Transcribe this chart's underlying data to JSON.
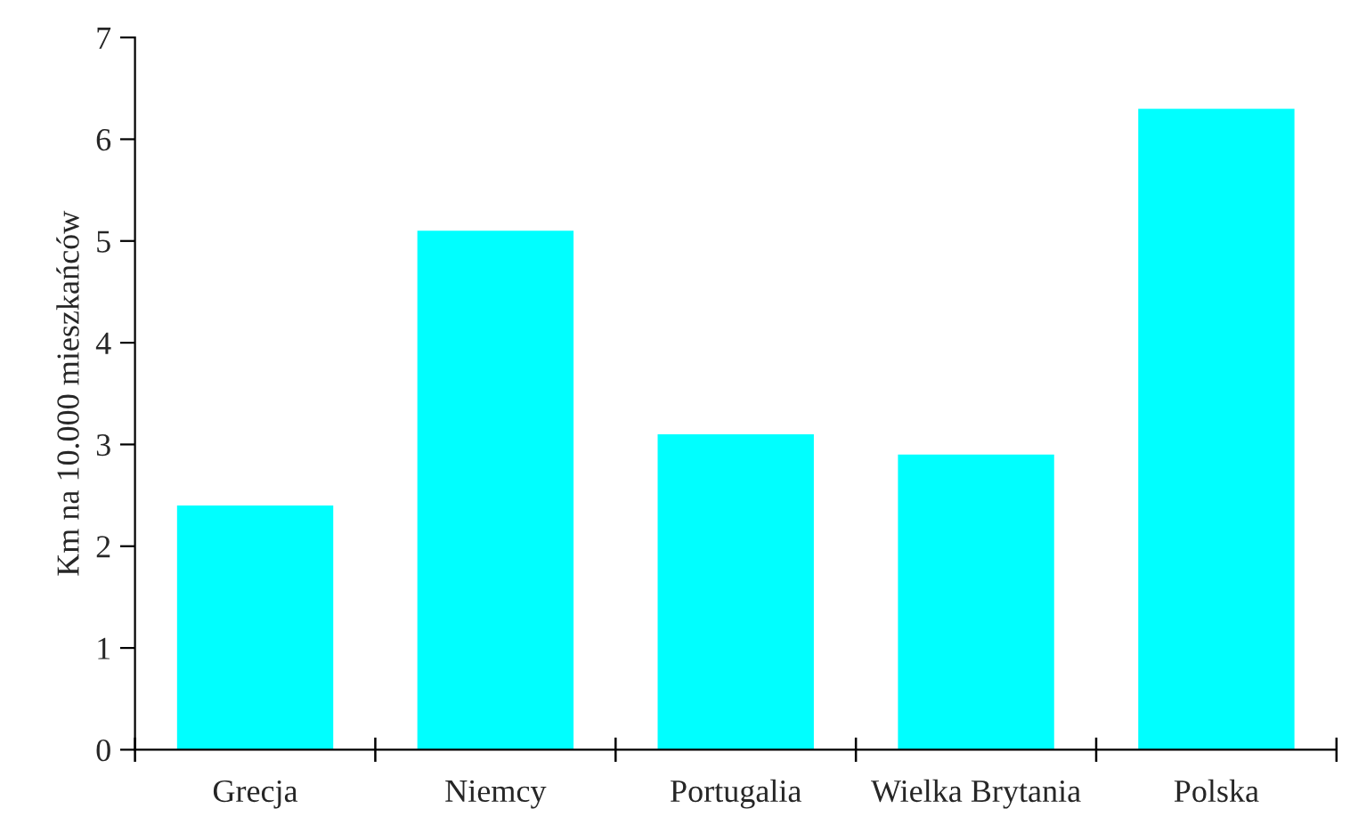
{
  "chart_data": {
    "type": "bar",
    "ylabel": "Km na 10.000 mieszkańców",
    "categories": [
      "Grecja",
      "Niemcy",
      "Portugalia",
      "Wielka Brytania",
      "Polska"
    ],
    "values": [
      2.4,
      5.1,
      3.1,
      2.9,
      6.3
    ],
    "color": "#00ffff",
    "ylim": [
      0,
      7
    ],
    "yticks": [
      0,
      1,
      2,
      3,
      4,
      5,
      6,
      7
    ],
    "grid": false
  }
}
